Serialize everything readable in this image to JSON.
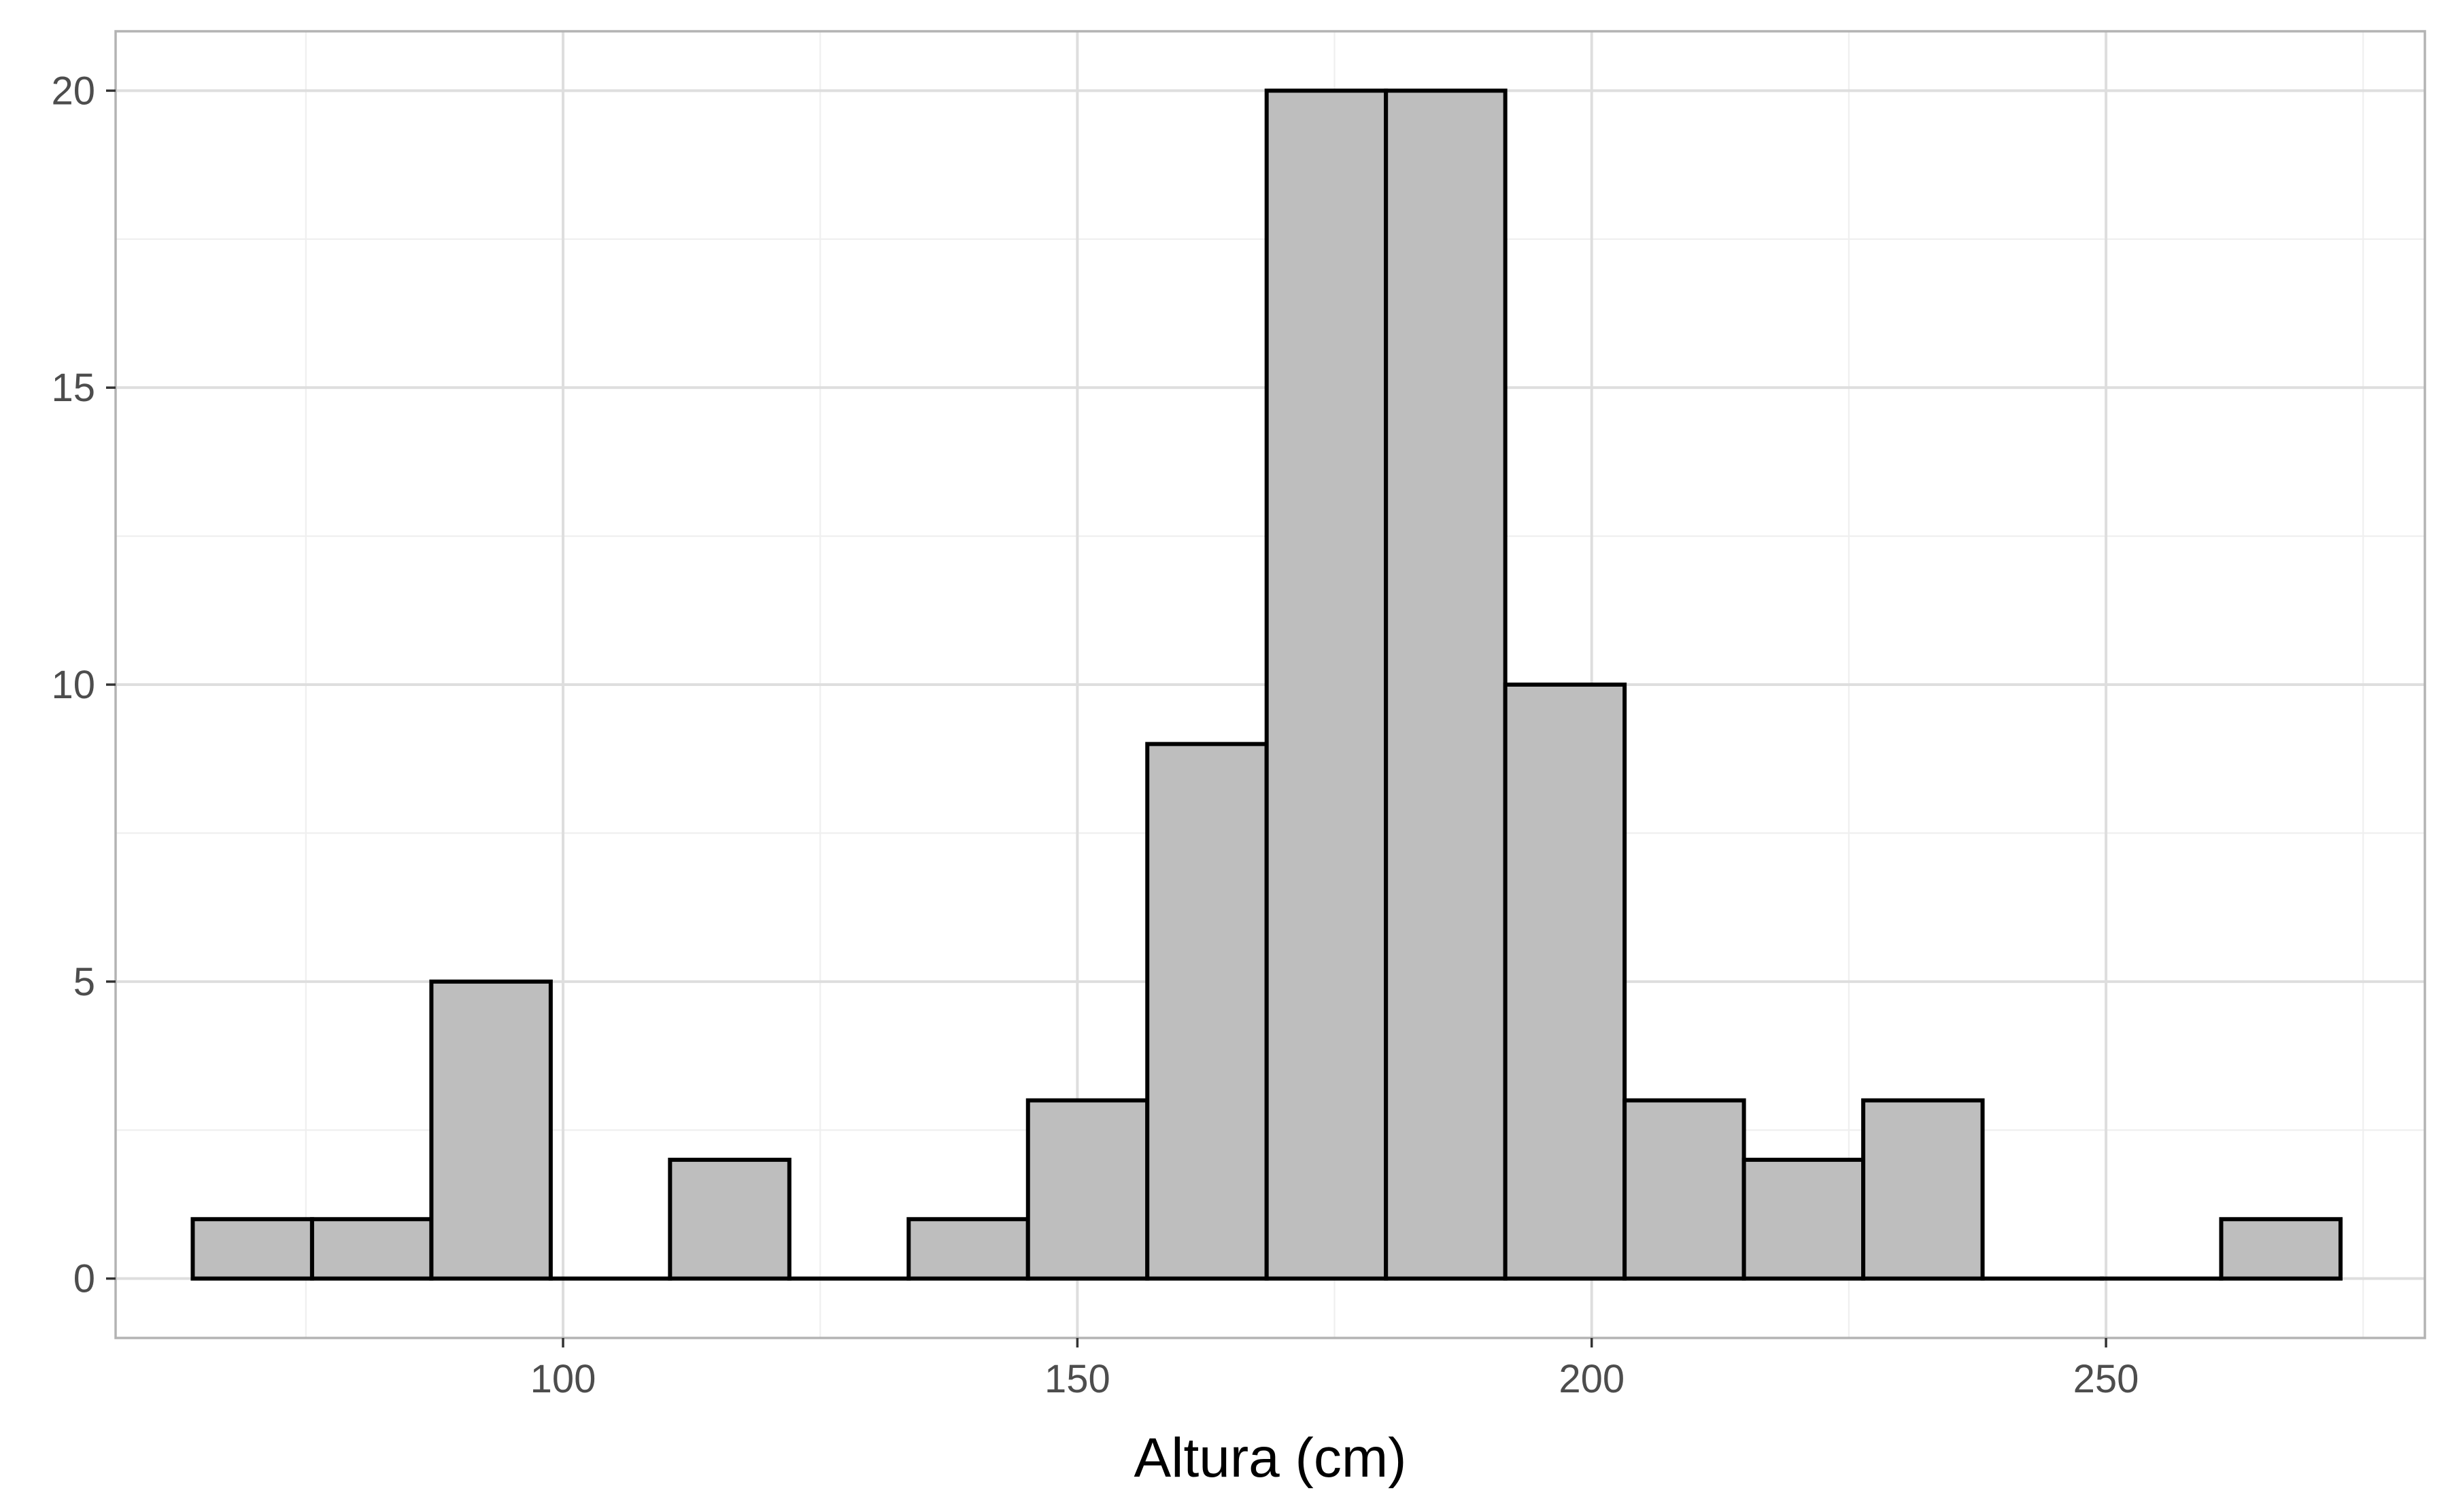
{
  "chart_data": {
    "type": "bar",
    "subtype": "histogram",
    "title": "",
    "xlabel": "Altura (cm)",
    "ylabel": "",
    "xlim": [
      56.5,
      281
    ],
    "ylim": [
      -1,
      21
    ],
    "x_ticks": [
      100,
      150,
      200,
      250
    ],
    "x_tick_labels": [
      "100",
      "150",
      "200",
      "250"
    ],
    "x_minor_ticks": [
      75,
      125,
      175,
      225,
      275
    ],
    "y_ticks": [
      0,
      5,
      10,
      15,
      20
    ],
    "y_tick_labels": [
      "0",
      "5",
      "10",
      "15",
      "20"
    ],
    "y_minor_ticks": [
      2.5,
      7.5,
      12.5,
      17.5
    ],
    "grid": true,
    "legend": "none",
    "bins": [
      {
        "x0": 64.0,
        "x1": 75.6,
        "count": 1
      },
      {
        "x0": 75.6,
        "x1": 87.2,
        "count": 1
      },
      {
        "x0": 87.2,
        "x1": 98.8,
        "count": 5
      },
      {
        "x0": 98.8,
        "x1": 110.4,
        "count": 0
      },
      {
        "x0": 110.4,
        "x1": 122.0,
        "count": 2
      },
      {
        "x0": 122.0,
        "x1": 133.6,
        "count": 0
      },
      {
        "x0": 133.6,
        "x1": 145.2,
        "count": 1
      },
      {
        "x0": 145.2,
        "x1": 156.8,
        "count": 3
      },
      {
        "x0": 156.8,
        "x1": 168.4,
        "count": 9
      },
      {
        "x0": 168.4,
        "x1": 180.0,
        "count": 20
      },
      {
        "x0": 180.0,
        "x1": 191.6,
        "count": 20
      },
      {
        "x0": 191.6,
        "x1": 203.2,
        "count": 10
      },
      {
        "x0": 203.2,
        "x1": 214.8,
        "count": 3
      },
      {
        "x0": 214.8,
        "x1": 226.4,
        "count": 2
      },
      {
        "x0": 226.4,
        "x1": 238.0,
        "count": 3
      },
      {
        "x0": 238.0,
        "x1": 249.6,
        "count": 0
      },
      {
        "x0": 249.6,
        "x1": 261.2,
        "count": 0
      },
      {
        "x0": 261.2,
        "x1": 272.8,
        "count": 1
      }
    ],
    "colors": {
      "bar_fill": "#bebebe",
      "bar_outline": "#000000",
      "grid_major": "#dedede",
      "grid_minor": "#efefef",
      "panel_border": "#b3b3b3",
      "tick_label": "#4d4d4d",
      "axis_title": "#000000"
    }
  }
}
